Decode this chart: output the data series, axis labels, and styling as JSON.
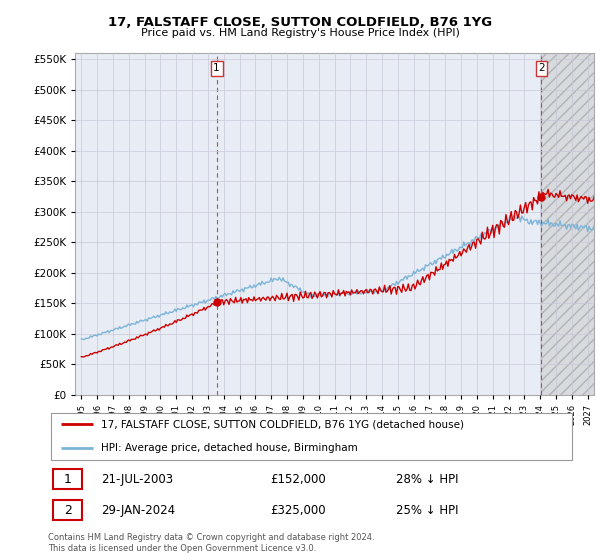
{
  "title": "17, FALSTAFF CLOSE, SUTTON COLDFIELD, B76 1YG",
  "subtitle": "Price paid vs. HM Land Registry's House Price Index (HPI)",
  "legend_label_red": "17, FALSTAFF CLOSE, SUTTON COLDFIELD, B76 1YG (detached house)",
  "legend_label_blue": "HPI: Average price, detached house, Birmingham",
  "sale1_date": "21-JUL-2003",
  "sale1_price": 152000,
  "sale1_label": "28% ↓ HPI",
  "sale1_t": 2003.55,
  "sale2_date": "29-JAN-2024",
  "sale2_price": 325000,
  "sale2_label": "25% ↓ HPI",
  "sale2_t": 2024.08,
  "footnote": "Contains HM Land Registry data © Crown copyright and database right 2024.\nThis data is licensed under the Open Government Licence v3.0.",
  "ylim_min": 0,
  "ylim_max": 560000,
  "xlim_min": 1994.6,
  "xlim_max": 2027.4,
  "red_color": "#cc0000",
  "blue_color": "#7cb4d8",
  "grid_color": "#c8c8d8",
  "plot_bg_color": "#e8edf5",
  "hatch_bg_color": "#d0d0d0",
  "vline_color": "#cc3333"
}
